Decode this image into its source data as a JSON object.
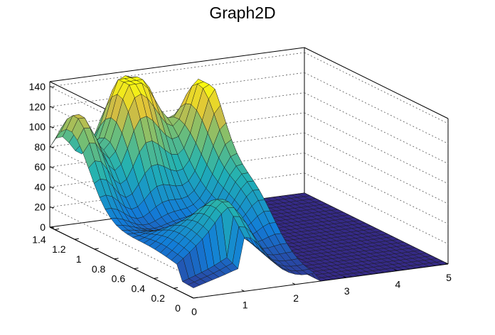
{
  "window": {
    "title": "Graph2D"
  },
  "chart_data": {
    "type": "surface",
    "title": "Graph2D",
    "xlabel": "",
    "ylabel": "",
    "zlabel": "",
    "x_ticks": [
      "0",
      "1",
      "2",
      "3",
      "4",
      "5"
    ],
    "y_ticks": [
      "0",
      "0.2",
      "0.4",
      "0.6",
      "0.8",
      "1",
      "1.2",
      "1.4"
    ],
    "z_ticks": [
      "0",
      "20",
      "40",
      "60",
      "80",
      "100",
      "120",
      "140"
    ],
    "xlim": [
      0,
      5
    ],
    "ylim": [
      0,
      1.45
    ],
    "zlim": [
      0,
      145
    ],
    "grid": true,
    "colormap": "parula",
    "colors": {
      "low": "#352a87",
      "mid": "#21b1b3",
      "high": "#f9fb0e"
    },
    "peaks": [
      {
        "x": 0.2,
        "y": 1.25,
        "z": 115
      },
      {
        "x": 1.1,
        "y": 1.25,
        "z": 128
      },
      {
        "x": 1.6,
        "y": 1.35,
        "z": 105
      },
      {
        "x": 2.4,
        "y": 1.1,
        "z": 130
      },
      {
        "x": 1.1,
        "y": 0.25,
        "z": 70
      },
      {
        "x": 0.5,
        "y": 0.4,
        "z": 40
      },
      {
        "x": 2.3,
        "y": 0.6,
        "z": 60
      }
    ],
    "flat_region": {
      "x_from": 2.5,
      "x_to": 5,
      "z": 0
    }
  }
}
